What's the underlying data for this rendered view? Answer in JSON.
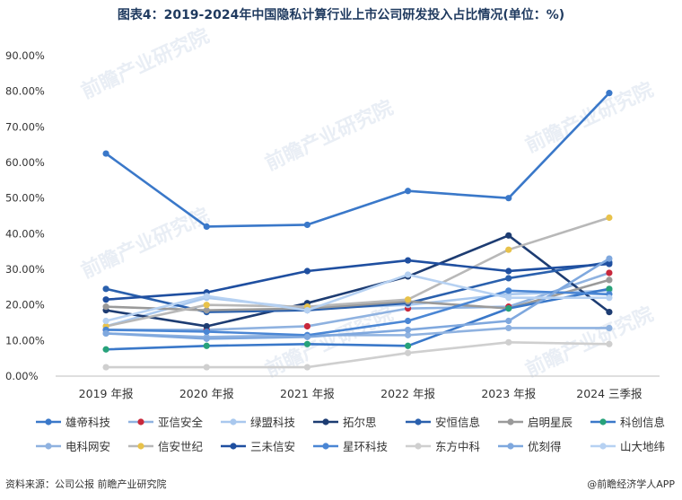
{
  "title": "图表4：2019-2024年中国隐私计算行业上市公司研发投入占比情况(单位：%)",
  "source": "资料来源：公司公报 前瞻产业研究院",
  "brand": "@前瞻经济学人APP",
  "watermark": "前瞻产业研究院",
  "chart_data": {
    "type": "line",
    "title": "图表4：2019-2024年中国隐私计算行业上市公司研发投入占比情况(单位：%)",
    "xlabel": "",
    "ylabel": "",
    "categories": [
      "2019 年报",
      "2020 年报",
      "2021 年报",
      "2022 年报",
      "2023 年报",
      "2024 三季报"
    ],
    "ylim": [
      0,
      90
    ],
    "yticks": [
      0,
      10,
      20,
      30,
      40,
      50,
      60,
      70,
      80,
      90
    ],
    "ytick_labels": [
      "0.00%",
      "10.00%",
      "20.00%",
      "30.00%",
      "40.00%",
      "50.00%",
      "60.00%",
      "70.00%",
      "80.00%",
      "90.00%"
    ],
    "grid": false,
    "legend_position": "bottom",
    "series": [
      {
        "name": "雄帝科技",
        "color": "#3a78c9",
        "values": [
          62.5,
          42.0,
          42.5,
          52.0,
          50.0,
          79.5
        ]
      },
      {
        "name": "亚信安全",
        "color": "#8fb2e0",
        "marker_color": "#c8283c",
        "values": [
          13.0,
          13.0,
          14.0,
          19.0,
          19.5,
          29.0
        ]
      },
      {
        "name": "绿盟科技",
        "color": "#a9c8ee",
        "values": [
          14.0,
          22.0,
          19.0,
          20.0,
          23.0,
          24.0
        ]
      },
      {
        "name": "拓尔思",
        "color": "#1d3c72",
        "values": [
          18.5,
          14.0,
          20.5,
          28.0,
          39.5,
          18.0
        ]
      },
      {
        "name": "安恒信息",
        "color": "#2a60ad",
        "values": [
          24.5,
          18.0,
          18.5,
          20.5,
          27.5,
          32.0
        ]
      },
      {
        "name": "启明星辰",
        "color": "#9a9a9a",
        "values": [
          19.5,
          18.5,
          19.0,
          21.0,
          19.0,
          27.0
        ]
      },
      {
        "name": "科创信息",
        "color": "#3a78c9",
        "marker_color": "#27a27a",
        "values": [
          7.5,
          8.5,
          9.0,
          8.5,
          19.0,
          24.5
        ]
      },
      {
        "name": "电科网安",
        "color": "#8fb2e0",
        "values": [
          12.0,
          11.0,
          11.5,
          11.5,
          13.5,
          13.5
        ]
      },
      {
        "name": "信安世纪",
        "color": "#b8b8b8",
        "marker_color": "#e8c24a",
        "values": [
          14.0,
          20.0,
          19.5,
          21.5,
          35.5,
          44.5
        ]
      },
      {
        "name": "三未信安",
        "color": "#1f4fa0",
        "values": [
          21.5,
          23.5,
          29.5,
          32.5,
          29.5,
          31.5
        ]
      },
      {
        "name": "星环科技",
        "color": "#4a86d4",
        "values": [
          13.0,
          12.5,
          11.5,
          15.5,
          24.0,
          23.0
        ]
      },
      {
        "name": "东方中科",
        "color": "#cfcfcf",
        "values": [
          2.5,
          2.5,
          2.5,
          6.5,
          9.5,
          9.0
        ]
      },
      {
        "name": "优刻得",
        "color": "#7fa8de",
        "values": [
          12.0,
          10.5,
          11.0,
          13.0,
          15.5,
          33.0
        ]
      },
      {
        "name": "山大地纬",
        "color": "#b6d1f2",
        "values": [
          15.5,
          22.5,
          18.5,
          28.5,
          22.0,
          22.0
        ]
      }
    ]
  }
}
